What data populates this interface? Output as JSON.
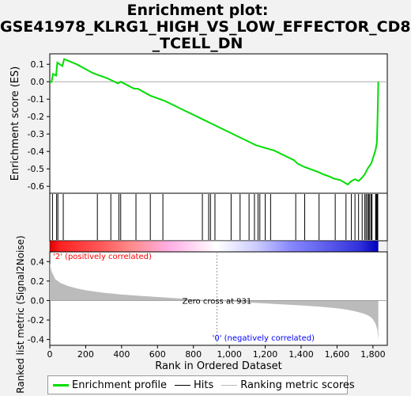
{
  "title_lines": [
    "Enrichment plot:",
    "GSE41978_KLRG1_HIGH_VS_LOW_EFFECTOR_CD8",
    "_TCELL_DN"
  ],
  "legend": {
    "profile": "Enrichment profile",
    "hits": "Hits",
    "ranking": "Ranking metric scores"
  },
  "colors": {
    "profile": "#00dd00",
    "hits": "#000000",
    "ranking": "#bbbbbb",
    "positive": "#ff0000",
    "negative": "#0000ff"
  },
  "chart_data": [
    {
      "type": "line",
      "name": "enrichment-score",
      "ylabel": "Enrichment score (ES)",
      "ylim": [
        -0.64,
        0.16
      ],
      "yticks": [
        0.1,
        0.0,
        -0.1,
        -0.2,
        -0.3,
        -0.4,
        -0.5,
        -0.6
      ],
      "ytick_labels": [
        "0.1",
        "0.0",
        "-0.1",
        "-0.2",
        "-0.3",
        "-0.4",
        "-0.5",
        "-0.6"
      ],
      "xlim": [
        0,
        1880
      ],
      "x": [
        0,
        10,
        18,
        35,
        42,
        70,
        80,
        150,
        240,
        265,
        320,
        340,
        380,
        395,
        470,
        490,
        560,
        640,
        700,
        800,
        900,
        1000,
        1100,
        1150,
        1200,
        1250,
        1300,
        1360,
        1380,
        1420,
        1500,
        1520,
        1560,
        1580,
        1620,
        1660,
        1680,
        1700,
        1720,
        1740,
        1755,
        1770,
        1790,
        1800,
        1815,
        1822,
        1826,
        1830
      ],
      "y": [
        -0.005,
        0.0,
        0.045,
        0.035,
        0.11,
        0.09,
        0.13,
        0.1,
        0.05,
        0.04,
        0.02,
        0.01,
        -0.01,
        0.0,
        -0.04,
        -0.04,
        -0.08,
        -0.11,
        -0.14,
        -0.19,
        -0.24,
        -0.29,
        -0.34,
        -0.365,
        -0.38,
        -0.395,
        -0.42,
        -0.45,
        -0.47,
        -0.49,
        -0.52,
        -0.53,
        -0.545,
        -0.555,
        -0.565,
        -0.59,
        -0.57,
        -0.56,
        -0.57,
        -0.55,
        -0.53,
        -0.5,
        -0.47,
        -0.44,
        -0.39,
        -0.35,
        -0.2,
        0.0
      ]
    },
    {
      "type": "scatter",
      "name": "hits",
      "x": [
        15,
        38,
        45,
        75,
        265,
        340,
        385,
        395,
        480,
        560,
        630,
        850,
        885,
        895,
        920,
        1010,
        1060,
        1110,
        1140,
        1160,
        1170,
        1200,
        1230,
        1370,
        1420,
        1500,
        1590,
        1650,
        1680,
        1700,
        1720,
        1740,
        1755,
        1762,
        1770,
        1776,
        1782,
        1790,
        1795,
        1815,
        1818,
        1821,
        1824,
        1827
      ]
    },
    {
      "type": "area",
      "name": "ranked-list-metric",
      "ylabel": "Ranked list metric (Signal2Noise)",
      "xlabel": "Rank in Ordered Dataset",
      "xlim": [
        0,
        1880
      ],
      "ylim": [
        -0.46,
        0.5
      ],
      "xticks": [
        0,
        200,
        400,
        600,
        800,
        1000,
        1200,
        1400,
        1600,
        1800
      ],
      "xtick_labels": [
        "0",
        "200",
        "400",
        "600",
        "800",
        "1,000",
        "1,200",
        "1,400",
        "1,600",
        "1,800"
      ],
      "yticks": [
        0.4,
        0.2,
        0.0,
        -0.2,
        -0.4
      ],
      "ytick_labels": [
        "0.4",
        "0.2",
        "0.0",
        "-0.2",
        "-0.4"
      ],
      "x": [
        0,
        10,
        30,
        60,
        100,
        150,
        200,
        300,
        400,
        500,
        600,
        700,
        800,
        931,
        1000,
        1100,
        1200,
        1300,
        1400,
        1500,
        1600,
        1650,
        1700,
        1750,
        1780,
        1800,
        1815,
        1825,
        1830
      ],
      "y": [
        0.38,
        0.3,
        0.22,
        0.18,
        0.15,
        0.125,
        0.105,
        0.08,
        0.062,
        0.048,
        0.036,
        0.024,
        0.012,
        0.0,
        -0.01,
        -0.02,
        -0.03,
        -0.04,
        -0.05,
        -0.062,
        -0.08,
        -0.092,
        -0.11,
        -0.135,
        -0.16,
        -0.19,
        -0.24,
        -0.3,
        -0.41
      ]
    }
  ],
  "annotations": {
    "positive": "'2' (positively correlated)",
    "negative": "'0' (negatively correlated)",
    "zero_cross": "Zero cross at 931"
  },
  "zero_cross": 931,
  "heat_stops": [
    {
      "x": 0,
      "color": "#dd0000"
    },
    {
      "x": 60,
      "color": "#ff2222"
    },
    {
      "x": 290,
      "color": "#ff5a5a"
    },
    {
      "x": 450,
      "color": "#ff8a8a"
    },
    {
      "x": 670,
      "color": "#ffb0e6"
    },
    {
      "x": 930,
      "color": "#ffffff"
    },
    {
      "x": 1150,
      "color": "#ccccff"
    },
    {
      "x": 1340,
      "color": "#8888ff"
    },
    {
      "x": 1500,
      "color": "#6666ee"
    },
    {
      "x": 1720,
      "color": "#3333dd"
    },
    {
      "x": 1830,
      "color": "#0000bb"
    }
  ]
}
